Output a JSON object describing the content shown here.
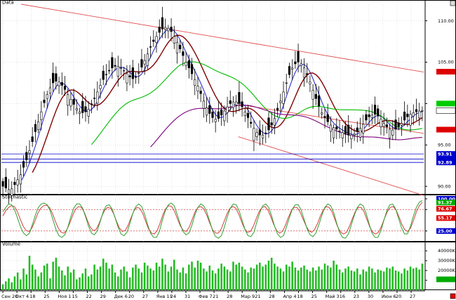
{
  "chart_data": [
    {
      "type": "candlestick",
      "title": "Data",
      "ylim": [
        89.0,
        112.0
      ],
      "yticks": [
        90.0,
        95.0,
        100.0,
        105.0,
        110.0
      ],
      "ytick_labels": [
        "90.00",
        "95.00",
        "",
        "105.00",
        "110.00"
      ],
      "x_labels": [
        "Сен 20",
        "Окт 4",
        "18",
        "25",
        "Ноя 1",
        "15",
        "22",
        "29",
        "Дек 6",
        "20",
        "27",
        "Янв 11",
        "24",
        "31",
        "Фев 7",
        "21",
        "28",
        "Мар 9",
        "21",
        "28",
        "Апр 4",
        "18",
        "25",
        "Май 3",
        "16",
        "23",
        "30",
        "Июн 6",
        "20",
        "27"
      ],
      "candles_close": [
        90.0,
        89.8,
        89.6,
        89.7,
        90.2,
        90.8,
        91.4,
        92.3,
        93.2,
        94.3,
        95.4,
        96.6,
        97.8,
        99.0,
        100.1,
        101.1,
        101.9,
        102.5,
        102.7,
        102.6,
        102.2,
        101.7,
        101.1,
        100.5,
        99.9,
        99.4,
        99.0,
        98.9,
        99.0,
        99.3,
        99.9,
        100.6,
        101.4,
        102.2,
        102.9,
        103.5,
        104.0,
        104.3,
        104.5,
        104.5,
        104.3,
        104.0,
        103.6,
        103.2,
        103.0,
        103.2,
        103.7,
        104.4,
        105.2,
        106.0,
        106.8,
        107.5,
        108.1,
        108.6,
        109.0,
        109.2,
        109.1,
        108.7,
        108.1,
        107.4,
        106.6,
        105.8,
        105.0,
        104.3,
        103.6,
        102.9,
        102.1,
        101.2,
        100.3,
        99.5,
        98.8,
        98.3,
        98.1,
        98.2,
        98.6,
        99.1,
        99.6,
        100.0,
        100.2,
        100.2,
        100.0,
        99.6,
        99.0,
        98.3,
        97.6,
        97.0,
        96.5,
        96.2,
        96.2,
        96.4,
        96.8,
        97.4,
        98.2,
        99.2,
        100.3,
        101.4,
        102.5,
        103.5,
        104.3,
        104.8,
        105.0,
        104.8,
        104.3,
        103.5,
        102.6,
        101.6,
        100.6,
        99.7,
        98.9,
        98.3,
        97.8,
        97.4,
        97.1,
        96.9,
        96.7,
        96.5,
        96.3,
        96.2,
        96.2,
        96.3,
        96.6,
        97.0,
        97.5,
        98.0,
        98.4,
        98.6,
        98.7,
        98.5,
        98.1,
        97.6,
        97.2,
        96.9,
        96.8,
        96.9,
        97.2,
        97.6,
        98.0,
        98.4,
        98.7,
        98.9,
        99.0,
        99.1,
        99.15
      ],
      "series": [
        {
          "name": "",
          "color": "#800000",
          "role": "moving-average-medium"
        },
        {
          "name": "",
          "color": "#3333cc",
          "role": "moving-average-fast"
        },
        {
          "name": "",
          "color": "#00bb00",
          "role": "moving-average-slow"
        },
        {
          "name": "",
          "color": "#800080",
          "role": "moving-average-long"
        }
      ],
      "markers": [
        {
          "label": "",
          "value": 103.85,
          "color": "#dd0000"
        },
        {
          "label": "",
          "value": 100.0,
          "color": "#00cc00"
        },
        {
          "label": "99.15",
          "value": 99.15,
          "color": "#000000",
          "text_color": "#000000"
        },
        {
          "label": "",
          "value": 96.85,
          "color": "#dd0000"
        },
        {
          "label": "93.91",
          "value": 93.91,
          "color": "#0000cc"
        },
        {
          "label": "",
          "value": 93.3,
          "color": "#0000cc"
        },
        {
          "label": "92.89",
          "value": 92.89,
          "color": "#0000cc"
        }
      ],
      "horizontal_lines": [
        93.91,
        93.3,
        92.89
      ],
      "channel": {
        "upper": [
          [
            5,
            112.0
          ],
          [
            107,
            103.8
          ]
        ],
        "middle": [
          [
            60,
            99.9
          ],
          [
            107,
            96.4
          ]
        ],
        "lower": [
          [
            60,
            96.0
          ],
          [
            107,
            88.9
          ]
        ]
      }
    },
    {
      "type": "line",
      "title": "Stochastic",
      "ylim": [
        0,
        100
      ],
      "yticks": [
        25,
        75,
        100
      ],
      "ytick_labels": [
        "25.00",
        "75.00",
        "100.00"
      ],
      "series": [
        {
          "name": "",
          "color": "#d04040",
          "values": [
            60,
            72,
            80,
            84,
            82,
            70,
            52,
            36,
            26,
            24,
            32,
            48,
            66,
            78,
            84,
            85,
            80,
            66,
            48,
            32,
            22,
            20,
            28,
            44,
            62,
            76,
            82,
            80,
            68,
            50,
            34,
            26,
            28,
            42,
            60,
            74,
            80,
            78,
            66,
            48,
            32,
            24,
            26,
            38,
            56,
            72,
            80,
            78,
            66,
            48,
            30,
            20,
            18,
            26,
            44,
            64,
            78,
            84,
            82,
            70,
            52,
            36,
            26,
            24,
            34,
            52,
            70,
            80,
            82,
            76,
            62,
            44,
            28,
            20,
            20,
            30,
            48,
            66,
            78,
            82,
            78,
            64,
            46,
            30,
            22,
            24,
            36,
            54,
            70,
            80,
            82,
            74,
            58,
            40,
            26,
            20,
            24,
            38,
            56,
            72,
            80,
            80,
            70,
            54,
            38,
            26,
            22,
            28,
            42,
            60,
            74,
            82,
            80,
            70,
            52,
            34,
            22,
            18,
            22,
            36,
            54,
            70,
            80,
            80,
            70,
            52,
            34,
            22,
            18,
            22,
            36,
            54,
            70,
            80,
            82,
            74,
            58,
            40,
            28,
            24,
            32,
            50,
            70,
            84,
            92
          ]
        },
        {
          "name": "",
          "color": "#30a030",
          "values": [
            70,
            80,
            88,
            86,
            74,
            54,
            34,
            20,
            14,
            20,
            40,
            62,
            80,
            88,
            90,
            86,
            72,
            50,
            28,
            14,
            10,
            16,
            34,
            58,
            78,
            88,
            88,
            78,
            58,
            36,
            20,
            16,
            26,
            48,
            70,
            84,
            86,
            76,
            56,
            34,
            18,
            14,
            22,
            42,
            66,
            82,
            88,
            82,
            64,
            40,
            20,
            10,
            10,
            24,
            50,
            72,
            86,
            90,
            84,
            64,
            42,
            24,
            16,
            20,
            38,
            62,
            80,
            88,
            84,
            70,
            48,
            26,
            12,
            8,
            14,
            34,
            58,
            78,
            88,
            86,
            72,
            50,
            28,
            14,
            12,
            22,
            46,
            68,
            84,
            88,
            80,
            60,
            36,
            18,
            10,
            14,
            34,
            56,
            76,
            86,
            86,
            74,
            52,
            30,
            16,
            12,
            20,
            40,
            62,
            80,
            88,
            84,
            68,
            44,
            22,
            10,
            8,
            18,
            40,
            62,
            80,
            88,
            84,
            66,
            42,
            20,
            10,
            10,
            26,
            50,
            72,
            86,
            88,
            76,
            54,
            32,
            18,
            18,
            36,
            60,
            80,
            92,
            96
          ]
        }
      ],
      "markers": [
        {
          "label": "100.00",
          "value": 100.0,
          "color": "#0000cc"
        },
        {
          "label": "91.37",
          "value": 91.37,
          "color": "#00aa00"
        },
        {
          "label": "76.67",
          "value": 76.67,
          "color": "#dd0000"
        },
        {
          "label": "55.17",
          "value": 55.17,
          "color": "#dd0000"
        },
        {
          "label": "25.00",
          "value": 25.0,
          "color": "#0000cc"
        }
      ],
      "horizontal_lines": [
        75,
        25
      ]
    },
    {
      "type": "bar",
      "title": "Volume",
      "ylim": [
        0,
        45000
      ],
      "yticks": [
        10000,
        20000,
        30000,
        40000
      ],
      "ytick_labels": [
        "10000K",
        "20000K",
        "30000K",
        "40000K"
      ],
      "values": [
        6000,
        9000,
        12000,
        8000,
        14000,
        18000,
        11000,
        22000,
        16000,
        35000,
        26000,
        21000,
        14000,
        18000,
        25000,
        27000,
        12000,
        29000,
        33000,
        24000,
        20000,
        15000,
        24000,
        18000,
        21000,
        11000,
        13000,
        17000,
        22000,
        14000,
        16000,
        26000,
        21000,
        24000,
        32000,
        28000,
        22000,
        26000,
        18000,
        14000,
        21000,
        24000,
        19000,
        13000,
        23000,
        26000,
        22000,
        18000,
        28000,
        25000,
        22000,
        20000,
        28000,
        24000,
        32000,
        26000,
        19000,
        24000,
        31000,
        21000,
        18000,
        23000,
        17000,
        26000,
        29000,
        23000,
        30000,
        28000,
        22000,
        19000,
        25000,
        20000,
        17000,
        22000,
        27000,
        24000,
        21000,
        19000,
        29000,
        26000,
        28000,
        24000,
        21000,
        18000,
        23000,
        22000,
        26000,
        28000,
        24000,
        26000,
        30000,
        33000,
        27000,
        24000,
        22000,
        19000,
        26000,
        24000,
        29000,
        23000,
        20000,
        23000,
        25000,
        21000,
        19000,
        23000,
        20000,
        24000,
        21000,
        27000,
        25000,
        23000,
        30000,
        26000,
        21000,
        18000,
        22000,
        24000,
        20000,
        19000,
        22000,
        16000,
        21000,
        19000,
        24000,
        22000,
        18000,
        21000,
        20000,
        19000,
        23000,
        22000,
        24000,
        20000,
        19000,
        17000,
        22000,
        20000,
        24000,
        22000,
        23000,
        21000,
        27000
      ],
      "markers": [
        {
          "label": "",
          "value": 11000,
          "color": "#00aa00"
        }
      ]
    }
  ],
  "x_axis": {
    "labels": [
      "Сен 20",
      "Окт 4",
      "18",
      "25",
      "Ноя 1",
      "15",
      "22",
      "29",
      "Дек 6",
      "20",
      "27",
      "Янв 11",
      "24",
      "31",
      "Фев 7",
      "21",
      "28",
      "Мар 9",
      "21",
      "28",
      "Апр 4",
      "18",
      "25",
      "Май 3",
      "16",
      "23",
      "30",
      "Июн 6",
      "20",
      "27"
    ]
  },
  "colors": {
    "background": "#ffffff",
    "grid": "#c8c8c8",
    "candle_up": "#ffffff",
    "candle_down": "#000000",
    "channel": "#e05050"
  }
}
